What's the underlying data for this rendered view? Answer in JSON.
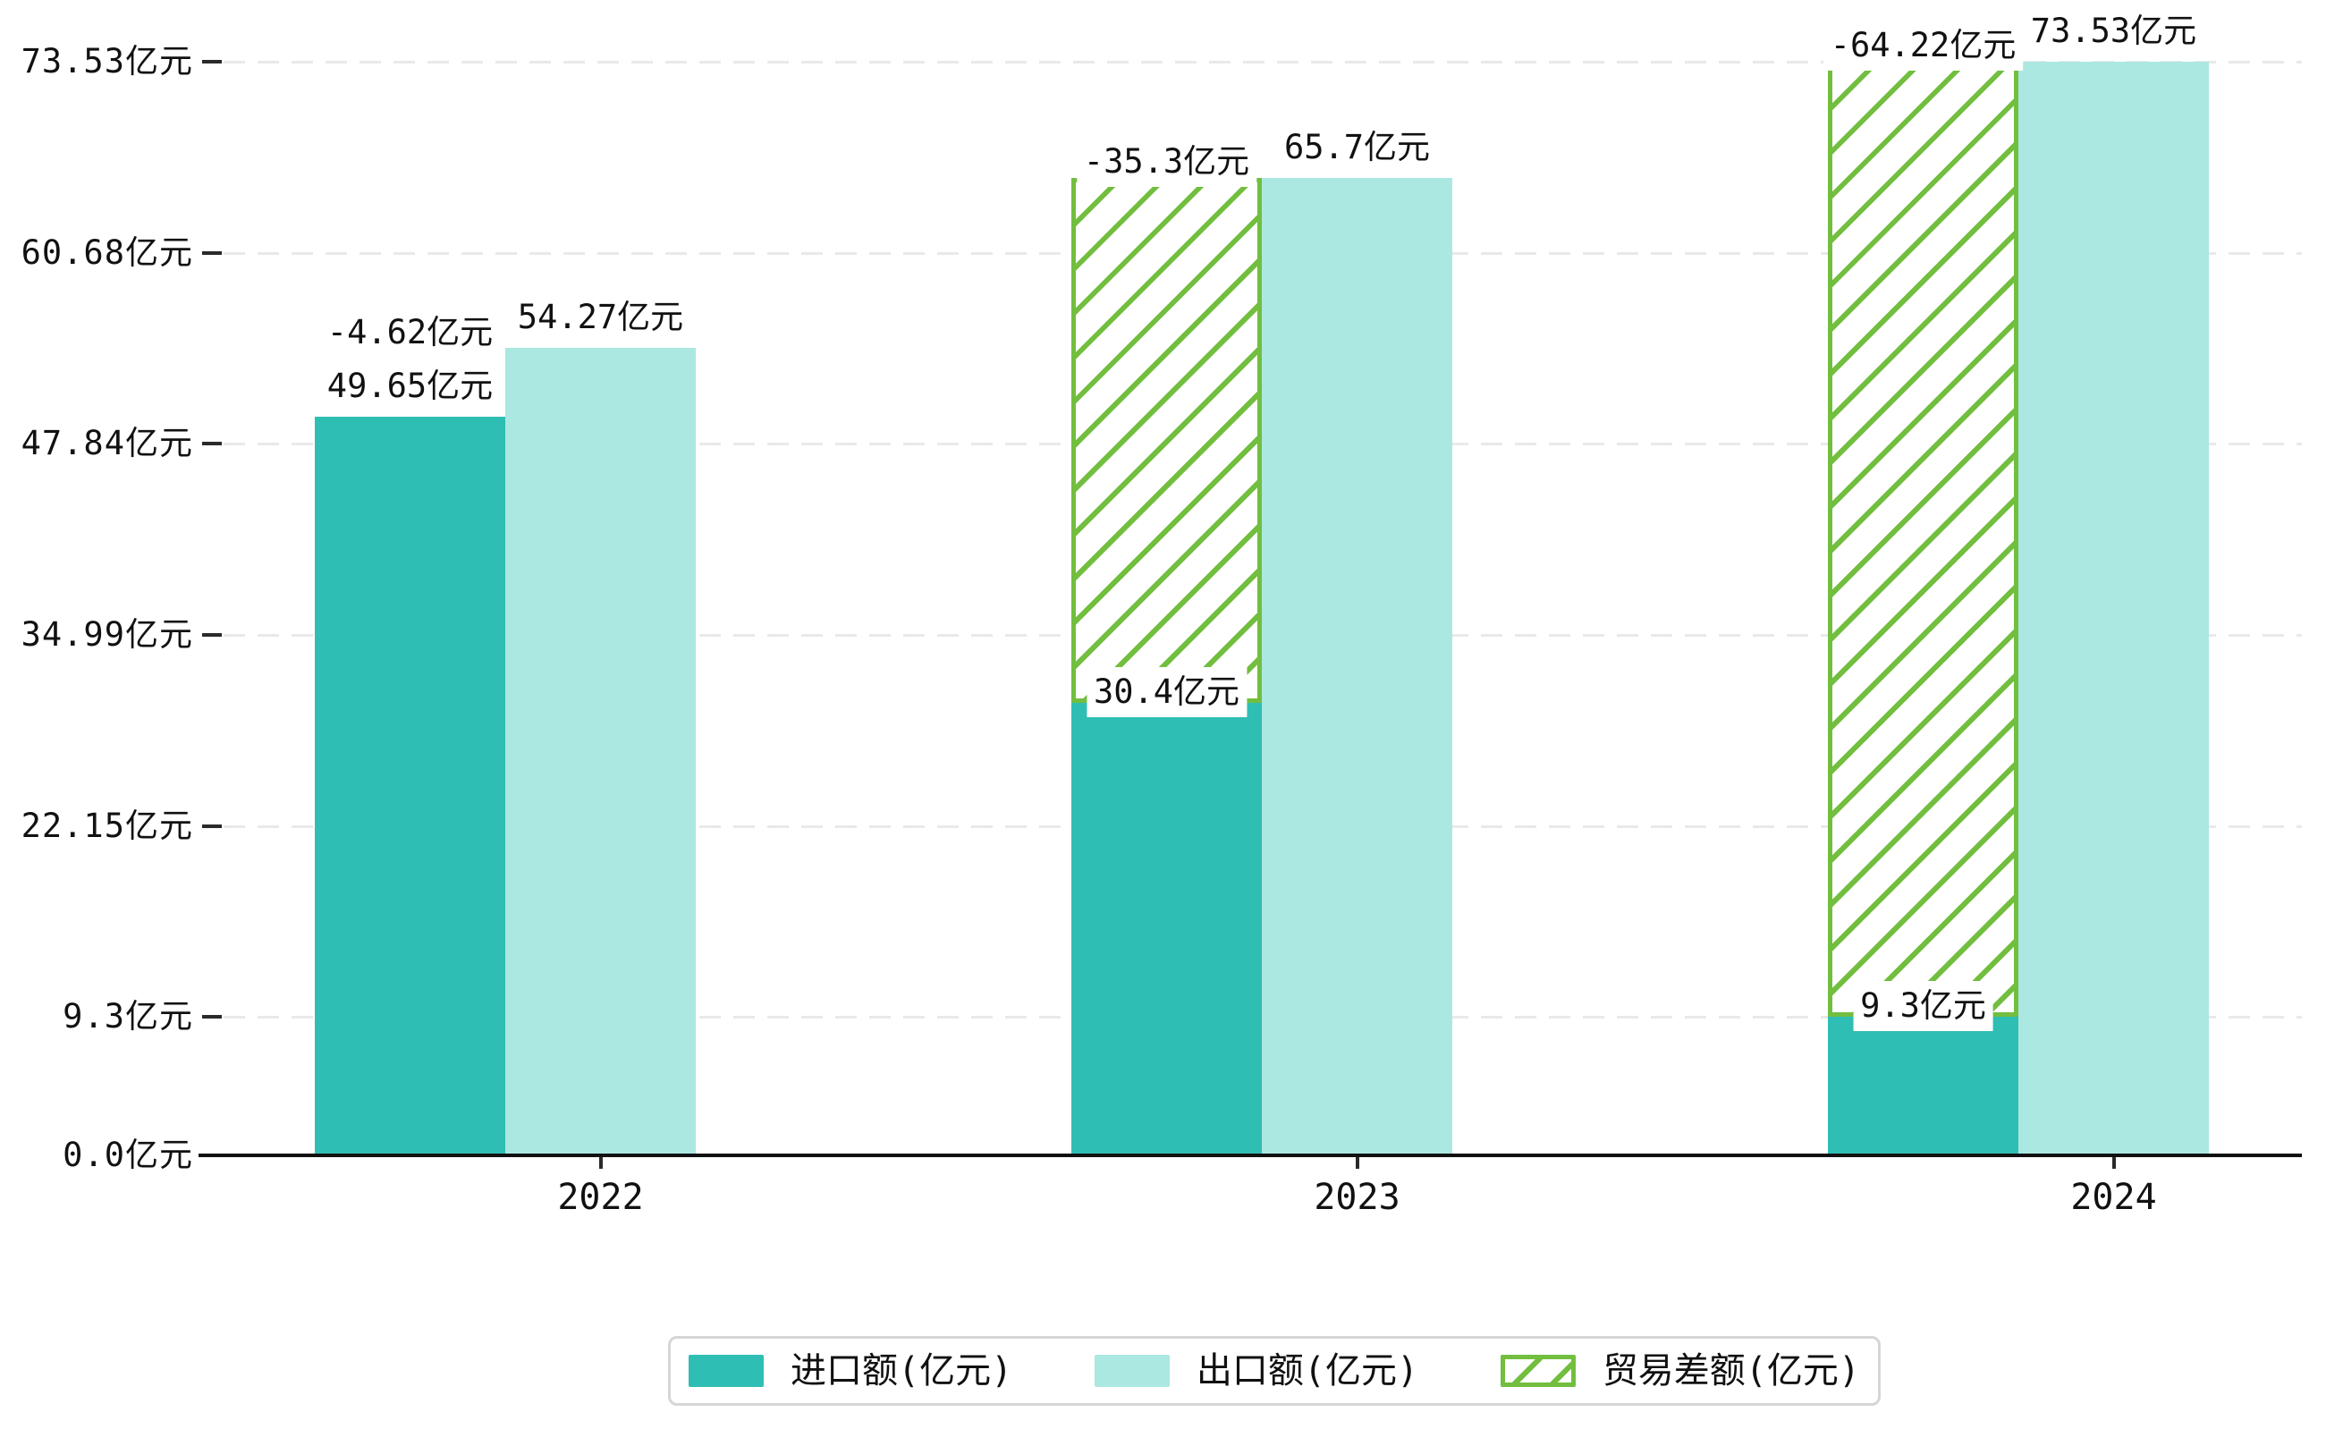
{
  "chart_data": {
    "type": "bar",
    "title": "",
    "categories": [
      "2022",
      "2023",
      "2024"
    ],
    "series": [
      {
        "name": "进口额(亿元)",
        "role": "import",
        "color": "#2fbeb4",
        "values": [
          49.65,
          30.4,
          9.3
        ],
        "bar_labels": [
          "49.65亿元",
          "30.4亿元",
          "9.3亿元"
        ]
      },
      {
        "name": "出口额(亿元)",
        "role": "export",
        "color": "#abe8e1",
        "values": [
          54.27,
          65.7,
          73.53
        ],
        "bar_labels": [
          "54.27亿元",
          "65.7亿元",
          "73.53亿元"
        ]
      },
      {
        "name": "贸易差额(亿元)",
        "role": "trade-balance",
        "style": "hatched",
        "color": "#72be3f",
        "values": [
          -4.62,
          -35.3,
          -64.22
        ],
        "bar_labels": [
          "-4.62亿元",
          "-35.3亿元",
          "-64.22亿元"
        ]
      }
    ],
    "y_axis": {
      "unit": "亿元",
      "range": [
        0,
        73.53
      ],
      "ticks": [
        {
          "value": 0,
          "label": "0.0亿元"
        },
        {
          "value": 9.3,
          "label": "9.3亿元"
        },
        {
          "value": 22.15,
          "label": "22.15亿元"
        },
        {
          "value": 34.99,
          "label": "34.99亿元"
        },
        {
          "value": 47.84,
          "label": "47.84亿元"
        },
        {
          "value": 60.68,
          "label": "60.68亿元"
        },
        {
          "value": 73.53,
          "label": "73.53亿元"
        }
      ]
    },
    "x_axis": {
      "labels": [
        "2022",
        "2023",
        "2024"
      ]
    },
    "grid": "horizontal-dashed",
    "legend": {
      "position": "bottom",
      "items": [
        "进口额(亿元)",
        "出口额(亿元)",
        "贸易差额(亿元)"
      ]
    },
    "colors": {
      "background": "#ffffff",
      "grid": "#e9e9e9",
      "axis": "#111111",
      "label_text": "#111111",
      "legend_border": "#d6d6d6"
    }
  }
}
